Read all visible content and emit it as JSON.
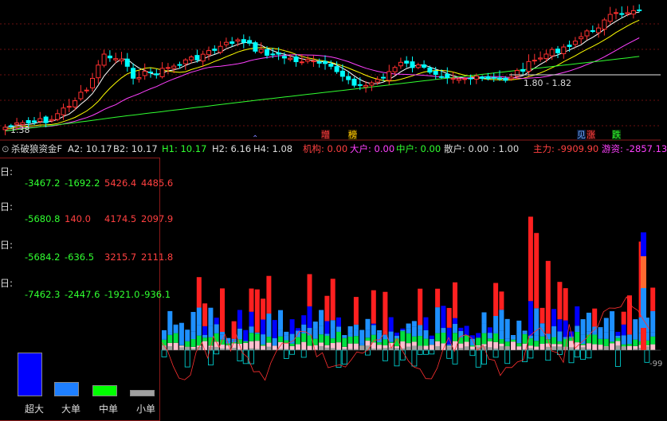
{
  "top_labels": {
    "low_price": "1.38",
    "range_label": "1.80 - 1.82"
  },
  "signals": [
    {
      "text": "增",
      "color": "#ff4040",
      "bg": "#3a0a0a"
    },
    {
      "text": "榜",
      "color": "#ffcc00",
      "bg": "#3a2a00"
    },
    {
      "text": "见",
      "color": "#6fa8ff",
      "bg": "#0a1a3a"
    },
    {
      "text": "涨",
      "color": "#ff4040",
      "bg": "#3a0a0a"
    },
    {
      "text": "跌",
      "color": "#30ff30",
      "bg": "#0a3a0a"
    }
  ],
  "indicator_bar": {
    "name": "杀破狼资金F",
    "a2": "A2: 10.17",
    "b2": "B2: 10.17",
    "h1": "H1: 10.17",
    "h2": "H2: 6.16",
    "h4": "H4: 1.08",
    "jigou": "机构: 0.00",
    "dahu": "大户: 0.00",
    "zhonghu": "中户: 0.00",
    "sanhu": "散户: 0.00",
    "colon": ": 1.00",
    "zhuli": "主力: -9909.90",
    "youzi": "游资: -2857.13",
    "colors": {
      "name": "#dddddd",
      "a2": "#dddddd",
      "b2": "#dddddd",
      "h1": "#30ff30",
      "h2": "#dddddd",
      "h4": "#dddddd",
      "jigou": "#ff4040",
      "dahu": "#ff40ff",
      "zhonghu": "#30ff30",
      "sanhu": "#dddddd",
      "colon": "#dddddd",
      "zhuli": "#ff4040",
      "youzi": "#ff40ff"
    }
  },
  "panel_rows": [
    {
      "label": "日:",
      "v1": "-3467.2",
      "v2": "-1692.2",
      "v3": "5426.4",
      "v4": "4485.6"
    },
    {
      "label": "日:",
      "v1": "-5680.8",
      "v2": "140.0",
      "v3": "4174.5",
      "v4": "2097.9"
    },
    {
      "label": "日:",
      "v1": "-5684.2",
      "v2": "-636.5",
      "v3": "3215.7",
      "v4": "2111.8"
    },
    {
      "label": "日:",
      "v1": "-7462.3",
      "v2": "-2447.6",
      "v3": "-1921.0",
      "v4": "-936.1"
    }
  ],
  "legend": [
    {
      "label": "超大",
      "color": "#0000ff",
      "value": 1.0
    },
    {
      "label": "大单",
      "color": "#1e7fff",
      "value": 0.33
    },
    {
      "label": "中单",
      "color": "#00ff00",
      "value": 0.25
    },
    {
      "label": "小单",
      "color": "#a0a0a0",
      "value": 0.15
    }
  ],
  "right_edge_label": "-99",
  "colors": {
    "up": "#ff3030",
    "down": "#00ffff",
    "ma5": "#ffffff",
    "ma10": "#ffff00",
    "ma20": "#ff40ff",
    "ma60": "#30ff30",
    "grid": "#6a1010"
  }
}
